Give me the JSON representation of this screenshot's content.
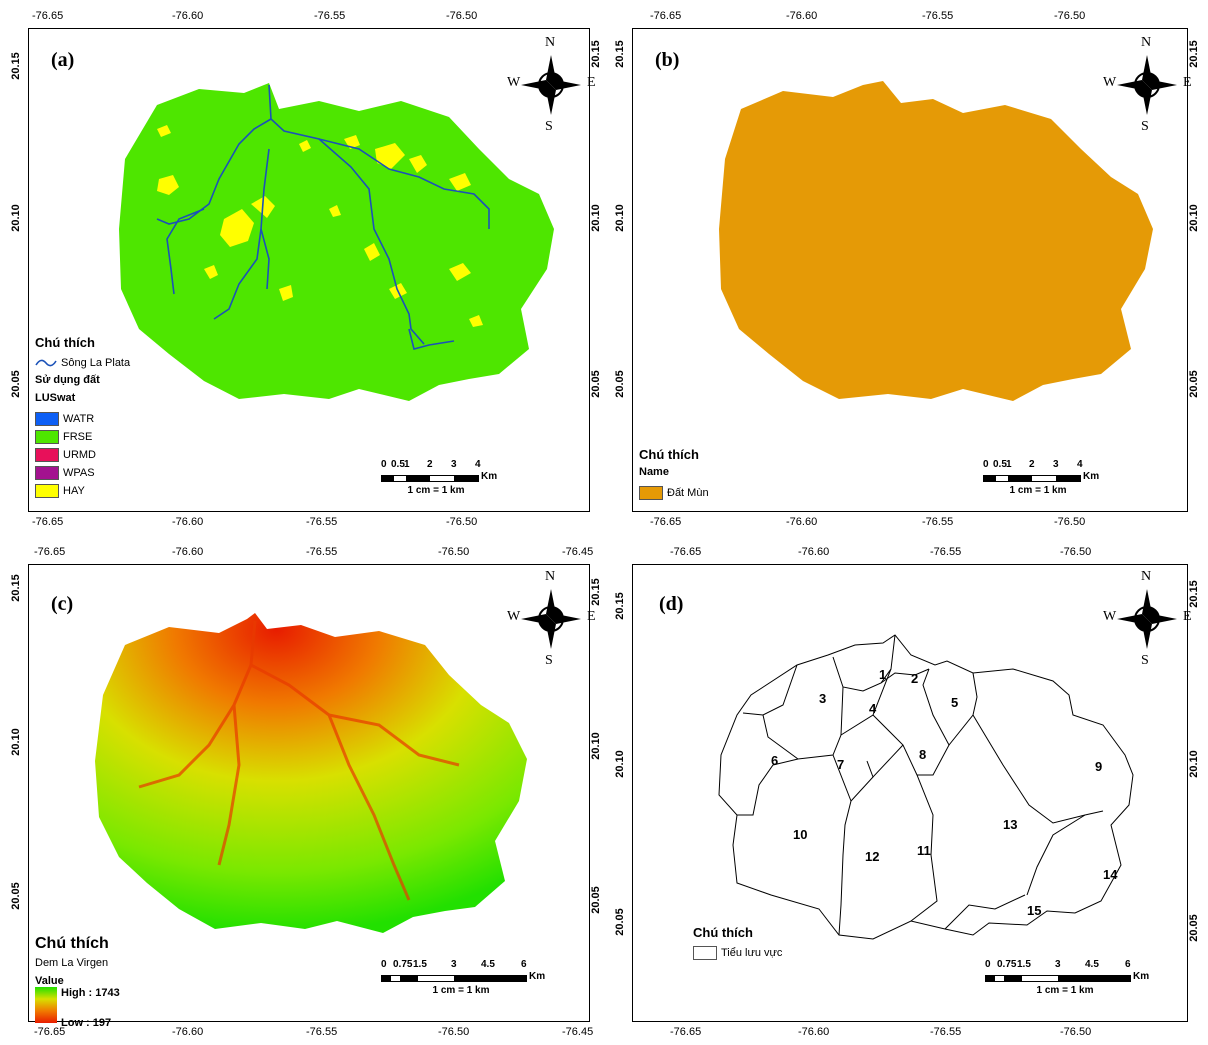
{
  "top_ticks": [
    "-76.65",
    "-76.60",
    "-76.55",
    "-76.50"
  ],
  "top_ticks_c": [
    "-76.65",
    "-76.60",
    "-76.55",
    "-76.50",
    "-76.45"
  ],
  "lat_ticks": [
    "20.15",
    "20.10",
    "20.05"
  ],
  "compass": {
    "n": "N",
    "s": "S",
    "w": "W",
    "e": "E"
  },
  "panel_a": {
    "label": "(a)",
    "legend_title": "Chú thích",
    "river": "Sông La Plata",
    "landuse_title": "Sử dụng đất",
    "landuse_field": "LUSwat",
    "classes": [
      {
        "name": "WATR",
        "color": "#0d5ff5"
      },
      {
        "name": "FRSE",
        "color": "#4ee600"
      },
      {
        "name": "URMD",
        "color": "#e8105a"
      },
      {
        "name": "WPAS",
        "color": "#a3128f"
      },
      {
        "name": "HAY",
        "color": "#ffff00"
      }
    ],
    "scale_nums": [
      "0",
      "0.5",
      "1",
      "2",
      "3",
      "4"
    ],
    "scale_unit": "Km",
    "scale_ratio": "1 cm = 1 km"
  },
  "panel_b": {
    "label": "(b)",
    "legend_title": "Chú thích",
    "field": "Name",
    "item": "Đất Mùn",
    "color": "#e59a06",
    "scale_nums": [
      "0",
      "0.5",
      "1",
      "2",
      "3",
      "4"
    ],
    "scale_unit": "Km",
    "scale_ratio": "1 cm = 1 km"
  },
  "panel_c": {
    "label": "(c)",
    "legend_title": "Chú thích",
    "layer": "Dem La Virgen",
    "value_label": "Value",
    "high": "High : 1743",
    "low": "Low : 197",
    "scale_nums": [
      "0",
      "0.75",
      "1.5",
      "3",
      "4.5",
      "6"
    ],
    "scale_unit": "Km",
    "scale_ratio": "1 cm = 1 km"
  },
  "panel_d": {
    "label": "(d)",
    "legend_title": "Chú thích",
    "item": "Tiểu lưu vực",
    "subbasins": [
      "1",
      "2",
      "3",
      "4",
      "5",
      "6",
      "7",
      "8",
      "9",
      "10",
      "11",
      "12",
      "13",
      "14",
      "15"
    ],
    "scale_nums": [
      "0",
      "0.75",
      "1.5",
      "3",
      "4.5",
      "6"
    ],
    "scale_unit": "Km",
    "scale_ratio": "1 cm = 1 km"
  }
}
